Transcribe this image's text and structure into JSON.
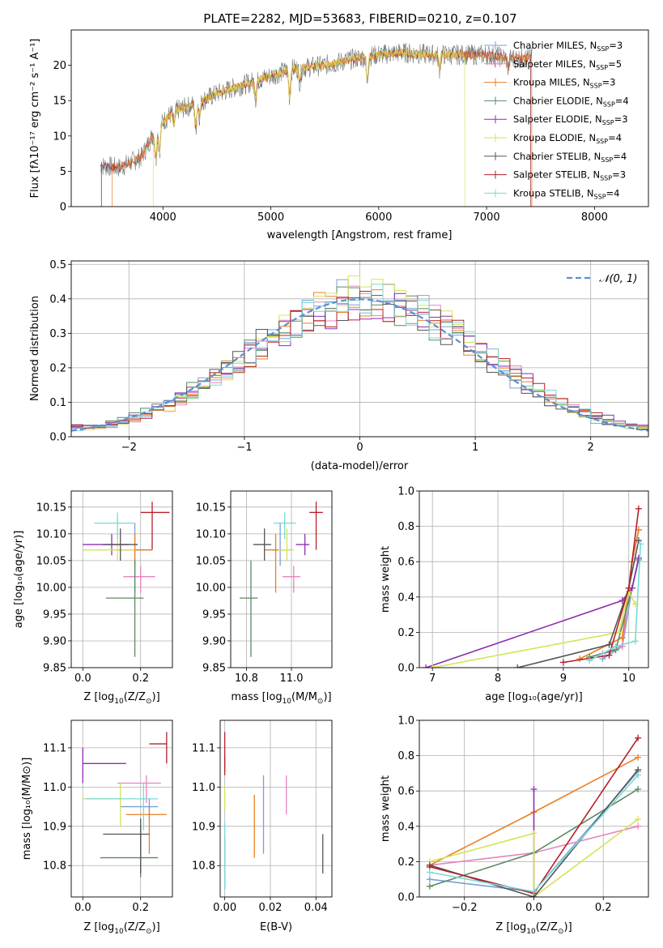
{
  "figure_title": "PLATE=2282, MJD=53683, FIBERID=0210, z=0.107",
  "colors": {
    "chabrier_miles": "#7b9fd6",
    "salpeter_miles": "#e783c0",
    "kroupa_miles": "#e88023",
    "chabrier_elodie": "#5a8a62",
    "salpeter_elodie": "#8e2faf",
    "kroupa_elodie": "#d6e356",
    "chabrier_stelib": "#555555",
    "salpeter_stelib": "#b5202a",
    "kroupa_stelib": "#78d9d6",
    "normal": "#5a8fd6"
  },
  "chart_data": [
    {
      "id": "spectrum",
      "type": "line",
      "xlabel": "wavelength [Angstrom, rest frame]",
      "ylabel": "Flux [fλ10⁻¹⁷ erg cm⁻² s⁻¹ A⁻¹]",
      "xlim": [
        3150,
        8500
      ],
      "ylim": [
        0,
        25
      ],
      "xticks": [
        "4000",
        "5000",
        "6000",
        "7000",
        "8000"
      ],
      "yticks": [
        "0",
        "5",
        "10",
        "15",
        "20"
      ],
      "legend_position": "right",
      "legend": [
        {
          "label": "Chabrier MILES, N",
          "sub": "SSP",
          "tail": "=3"
        },
        {
          "label": "Salpeter MILES, N",
          "sub": "SSP",
          "tail": "=5"
        },
        {
          "label": "Kroupa MILES, N",
          "sub": "SSP",
          "tail": "=3"
        },
        {
          "label": "Chabrier ELODIE, N",
          "sub": "SSP",
          "tail": "=4"
        },
        {
          "label": "Salpeter ELODIE, N",
          "sub": "SSP",
          "tail": "=3"
        },
        {
          "label": "Kroupa ELODIE, N",
          "sub": "SSP",
          "tail": "=4"
        },
        {
          "label": "Chabrier STELIB, N",
          "sub": "SSP",
          "tail": "=4"
        },
        {
          "label": "Salpeter STELIB, N",
          "sub": "SSP",
          "tail": "=3"
        },
        {
          "label": "Kroupa STELIB, N",
          "sub": "SSP",
          "tail": "=4"
        }
      ],
      "continuum": {
        "x": [
          3420,
          3600,
          3800,
          3900,
          4000,
          4100,
          4300,
          4500,
          4800,
          5000,
          5200,
          5500,
          5800,
          6000,
          6200,
          6500,
          6800,
          7000,
          7200,
          7400
        ],
        "y": [
          5.8,
          5.5,
          7.0,
          10.0,
          12.0,
          13.5,
          14.5,
          16.0,
          17.5,
          18.5,
          19.5,
          20.0,
          21.0,
          21.5,
          21.8,
          21.5,
          21.5,
          21.5,
          21.0,
          21.0
        ]
      },
      "model_cutoffs": [
        {
          "series": "kroupa_miles",
          "xmin": 3530,
          "xmax": 7420
        },
        {
          "series": "kroupa_elodie",
          "xmin": 3910,
          "xmax": 6800
        }
      ]
    },
    {
      "id": "residuals",
      "type": "histogram",
      "xlabel": "(data-model)/error",
      "ylabel": "Normed distribution",
      "xlim": [
        -2.5,
        2.5
      ],
      "ylim": [
        0,
        0.51
      ],
      "xticks": [
        "−2",
        "−1",
        "0",
        "1",
        "2"
      ],
      "yticks": [
        "0.0",
        "0.1",
        "0.2",
        "0.3",
        "0.4",
        "0.5"
      ],
      "grid": true,
      "legend_position": "top-right",
      "legend": "𝒩(0, 1)",
      "bin_width": 0.1
    },
    {
      "id": "age-vs-z",
      "type": "scatter",
      "xlabel_main": "Z [log",
      "xlabel_sub": "10",
      "xlabel_tail": "(Z/Z",
      "xlabel_sun_sub": "⊙",
      "xlabel_end": ")]",
      "ylabel": "age  [log₁₀(age/yr)]",
      "xlim": [
        -0.04,
        0.31
      ],
      "ylim": [
        9.85,
        10.18
      ],
      "xticks": [
        "0.0",
        "0.2"
      ],
      "yticks": [
        "9.85",
        "9.90",
        "9.95",
        "10.00",
        "10.05",
        "10.10",
        "10.15"
      ],
      "grid": true,
      "points": [
        {
          "series": "chabrier_miles",
          "x": 0.18,
          "xerr": [
            0.07,
            0.06
          ],
          "y": 10.07,
          "yerr": [
            0.03,
            0.05
          ]
        },
        {
          "series": "salpeter_miles",
          "x": 0.2,
          "xerr": [
            0.06,
            0.05
          ],
          "y": 10.02,
          "yerr": [
            0.03,
            0.02
          ]
        },
        {
          "series": "kroupa_miles",
          "x": 0.18,
          "xerr": [
            0.05,
            0.06
          ],
          "y": 10.07,
          "yerr": [
            0.08,
            0.03
          ]
        },
        {
          "series": "chabrier_elodie",
          "x": 0.18,
          "xerr": [
            0.1,
            0.03
          ],
          "y": 9.98,
          "yerr": [
            0.11,
            0.07
          ]
        },
        {
          "series": "salpeter_elodie",
          "x": 0.1,
          "xerr": [
            0.1,
            0.06
          ],
          "y": 10.08,
          "yerr": [
            0.02,
            0.02
          ]
        },
        {
          "series": "kroupa_elodie",
          "x": 0.12,
          "xerr": [
            0.12,
            0.06
          ],
          "y": 10.07,
          "yerr": [
            0.02,
            0.04
          ]
        },
        {
          "series": "chabrier_stelib",
          "x": 0.13,
          "xerr": [
            0.06,
            0.06
          ],
          "y": 10.08,
          "yerr": [
            0.03,
            0.03
          ]
        },
        {
          "series": "salpeter_stelib",
          "x": 0.24,
          "xerr": [
            0.04,
            0.06
          ],
          "y": 10.14,
          "yerr": [
            0.07,
            0.02
          ]
        },
        {
          "series": "kroupa_stelib",
          "x": 0.12,
          "xerr": [
            0.08,
            0.06
          ],
          "y": 10.12,
          "yerr": [
            0.03,
            0.02
          ]
        }
      ]
    },
    {
      "id": "age-vs-mass",
      "type": "scatter",
      "xlabel_main": "mass [log",
      "xlabel_sub": "10",
      "xlabel_tail": "(M/M",
      "xlabel_sun_sub": "⊙",
      "xlabel_end": ")]",
      "xlim": [
        10.73,
        11.18
      ],
      "ylim": [
        9.85,
        10.18
      ],
      "xticks": [
        "10.8",
        "11.0"
      ],
      "yticks": [
        "9.85",
        "9.90",
        "9.95",
        "10.00",
        "10.05",
        "10.10",
        "10.15"
      ],
      "grid": true,
      "points": [
        {
          "series": "chabrier_miles",
          "x": 10.95,
          "xerr": [
            0.04,
            0.05
          ],
          "y": 10.07,
          "yerr": [
            0.03,
            0.05
          ]
        },
        {
          "series": "salpeter_miles",
          "x": 11.01,
          "xerr": [
            0.05,
            0.03
          ],
          "y": 10.02,
          "yerr": [
            0.03,
            0.02
          ]
        },
        {
          "series": "kroupa_miles",
          "x": 10.93,
          "xerr": [
            0.05,
            0.05
          ],
          "y": 10.07,
          "yerr": [
            0.08,
            0.03
          ]
        },
        {
          "series": "chabrier_elodie",
          "x": 10.82,
          "xerr": [
            0.05,
            0.03
          ],
          "y": 9.98,
          "yerr": [
            0.11,
            0.07
          ]
        },
        {
          "series": "salpeter_elodie",
          "x": 11.06,
          "xerr": [
            0.04,
            0.02
          ],
          "y": 10.08,
          "yerr": [
            0.02,
            0.02
          ]
        },
        {
          "series": "kroupa_elodie",
          "x": 10.98,
          "xerr": [
            0.04,
            0.03
          ],
          "y": 10.07,
          "yerr": [
            0.02,
            0.04
          ]
        },
        {
          "series": "chabrier_stelib",
          "x": 10.88,
          "xerr": [
            0.05,
            0.03
          ],
          "y": 10.08,
          "yerr": [
            0.03,
            0.03
          ]
        },
        {
          "series": "salpeter_stelib",
          "x": 11.11,
          "xerr": [
            0.03,
            0.03
          ],
          "y": 10.14,
          "yerr": [
            0.07,
            0.02
          ]
        },
        {
          "series": "kroupa_stelib",
          "x": 10.97,
          "xerr": [
            0.05,
            0.05
          ],
          "y": 10.12,
          "yerr": [
            0.03,
            0.02
          ]
        }
      ]
    },
    {
      "id": "mass-weight-vs-age",
      "type": "line",
      "xlabel": "age  [log₁₀(age/yr)]",
      "ylabel": "mass weight",
      "xlim": [
        6.8,
        10.3
      ],
      "ylim": [
        0,
        1
      ],
      "xticks": [
        "7",
        "8",
        "9",
        "10"
      ],
      "yticks": [
        "0.0",
        "0.2",
        "0.4",
        "0.6",
        "0.8",
        "1.0"
      ],
      "grid": true,
      "series": [
        {
          "name": "chabrier_miles",
          "x": [
            9.6,
            9.9,
            10.05,
            10.15
          ],
          "y": [
            0.05,
            0.12,
            0.45,
            0.62
          ]
        },
        {
          "name": "salpeter_miles",
          "x": [
            9.6,
            9.9,
            10.05,
            10.15
          ],
          "y": [
            0.08,
            0.12,
            0.6,
            0.78
          ]
        },
        {
          "name": "kroupa_miles",
          "x": [
            9.25,
            9.9,
            10.05,
            10.15
          ],
          "y": [
            0.05,
            0.17,
            0.6,
            0.78
          ]
        },
        {
          "name": "chabrier_elodie",
          "x": [
            9.4,
            9.8,
            10.05,
            10.15
          ],
          "y": [
            0.06,
            0.1,
            0.45,
            0.61
          ]
        },
        {
          "name": "salpeter_elodie",
          "x": [
            6.9,
            9.9,
            10.05,
            10.15
          ],
          "y": [
            0.0,
            0.38,
            0.45,
            0.62
          ]
        },
        {
          "name": "kroupa_elodie",
          "x": [
            7.0,
            9.85,
            10.0,
            10.1
          ],
          "y": [
            0.0,
            0.2,
            0.43,
            0.36
          ]
        },
        {
          "name": "chabrier_stelib",
          "x": [
            8.3,
            9.7,
            10.0,
            10.15
          ],
          "y": [
            0.0,
            0.13,
            0.45,
            0.72
          ]
        },
        {
          "name": "salpeter_stelib",
          "x": [
            9.0,
            9.7,
            10.0,
            10.15
          ],
          "y": [
            0.03,
            0.07,
            0.45,
            0.9
          ]
        },
        {
          "name": "kroupa_stelib",
          "x": [
            9.4,
            9.8,
            10.1,
            10.18
          ],
          "y": [
            0.04,
            0.12,
            0.15,
            0.7
          ]
        }
      ]
    },
    {
      "id": "mass-vs-z",
      "type": "scatter",
      "xlabel_main": "Z [log",
      "xlabel_sub": "10",
      "xlabel_tail": "(Z/Z",
      "xlabel_sun_sub": "⊙",
      "xlabel_end": ")]",
      "ylabel": "mass [log₁₀(M/M⊙)]",
      "xlim": [
        -0.04,
        0.31
      ],
      "ylim": [
        10.72,
        11.17
      ],
      "xticks": [
        "0.0",
        "0.2"
      ],
      "yticks": [
        "10.8",
        "10.9",
        "11.0",
        "11.1"
      ],
      "grid": true,
      "points": [
        {
          "series": "chabrier_miles",
          "x": 0.23,
          "xerr": [
            0.1,
            0.03
          ],
          "y": 10.95,
          "yerr": [
            0.03,
            0.02
          ]
        },
        {
          "series": "salpeter_miles",
          "x": 0.22,
          "xerr": [
            0.1,
            0.05
          ],
          "y": 11.01,
          "yerr": [
            0.05,
            0.02
          ]
        },
        {
          "series": "kroupa_miles",
          "x": 0.23,
          "xerr": [
            0.08,
            0.06
          ],
          "y": 10.93,
          "yerr": [
            0.1,
            0.02
          ]
        },
        {
          "series": "chabrier_elodie",
          "x": 0.2,
          "xerr": [
            0.14,
            0.06
          ],
          "y": 10.82,
          "yerr": [
            0.05,
            0.08
          ]
        },
        {
          "series": "salpeter_elodie",
          "x": 0.0,
          "xerr": [
            0.0,
            0.15
          ],
          "y": 11.06,
          "yerr": [
            0.05,
            0.04
          ]
        },
        {
          "series": "kroupa_elodie",
          "x": 0.13,
          "xerr": [
            0.13,
            0.0
          ],
          "y": 10.97,
          "yerr": [
            0.07,
            0.04
          ]
        },
        {
          "series": "chabrier_stelib",
          "x": 0.2,
          "xerr": [
            0.13,
            0.03
          ],
          "y": 10.88,
          "yerr": [
            0.1,
            0.04
          ]
        },
        {
          "series": "salpeter_stelib",
          "x": 0.29,
          "xerr": [
            0.06,
            0.0
          ],
          "y": 11.11,
          "yerr": [
            0.05,
            0.03
          ]
        },
        {
          "series": "kroupa_stelib",
          "x": 0.21,
          "xerr": [
            0.2,
            0.05
          ],
          "y": 10.97,
          "yerr": [
            0.08,
            0.04
          ]
        }
      ]
    },
    {
      "id": "mass-vs-ebv",
      "type": "scatter",
      "xlabel": "E(B-V)",
      "xlim": [
        -0.002,
        0.047
      ],
      "ylim": [
        10.72,
        11.17
      ],
      "xticks": [
        "0.00",
        "0.02",
        "0.04"
      ],
      "yticks": [
        "10.8",
        "10.9",
        "11.0",
        "11.1"
      ],
      "grid": true,
      "points": [
        {
          "series": "chabrier_miles",
          "x": 0.017,
          "y": 10.93,
          "yerr": [
            0.1,
            0.1
          ]
        },
        {
          "series": "salpeter_miles",
          "x": 0.027,
          "y": 11.0,
          "yerr": [
            0.07,
            0.03
          ]
        },
        {
          "series": "kroupa_miles",
          "x": 0.013,
          "y": 10.9,
          "yerr": [
            0.08,
            0.08
          ]
        },
        {
          "series": "chabrier_elodie",
          "x": 0.0,
          "y": 10.82,
          "yerr": [
            0.08,
            0.05
          ]
        },
        {
          "series": "salpeter_elodie",
          "x": 0.0,
          "y": 11.06,
          "yerr": [
            0.02,
            0.02
          ]
        },
        {
          "series": "kroupa_elodie",
          "x": 0.0,
          "y": 10.97,
          "yerr": [
            0.03,
            0.03
          ]
        },
        {
          "series": "chabrier_stelib",
          "x": 0.043,
          "y": 10.83,
          "yerr": [
            0.05,
            0.05
          ]
        },
        {
          "series": "salpeter_stelib",
          "x": 0.0,
          "y": 11.08,
          "yerr": [
            0.05,
            0.06
          ]
        },
        {
          "series": "kroupa_stelib",
          "x": 0.0,
          "y": 10.86,
          "yerr": [
            0.12,
            0.05
          ]
        }
      ]
    },
    {
      "id": "mass-weight-vs-z",
      "type": "line",
      "xlabel_main": "Z [log",
      "xlabel_sub": "10",
      "xlabel_tail": "(Z/Z",
      "xlabel_sun_sub": "⊙",
      "xlabel_end": ")]",
      "ylabel": "mass weight",
      "xlim": [
        -0.33,
        0.33
      ],
      "ylim": [
        0,
        1
      ],
      "xticks": [
        "−0.2",
        "0.0",
        "0.2"
      ],
      "yticks": [
        "0.0",
        "0.2",
        "0.4",
        "0.6",
        "0.8",
        "1.0"
      ],
      "grid": true,
      "series": [
        {
          "name": "chabrier_miles",
          "x": [
            -0.3,
            0.0,
            0.3
          ],
          "y": [
            0.1,
            0.03,
            0.71
          ]
        },
        {
          "name": "salpeter_miles",
          "x": [
            -0.3,
            0.0,
            0.3
          ],
          "y": [
            0.18,
            0.25,
            0.4
          ]
        },
        {
          "name": "kroupa_miles",
          "x": [
            -0.3,
            0.0,
            0.3
          ],
          "y": [
            0.18,
            0.48,
            0.79
          ]
        },
        {
          "name": "chabrier_elodie",
          "x": [
            -0.3,
            0.0,
            0.3
          ],
          "y": [
            0.06,
            0.25,
            0.61
          ]
        },
        {
          "name": "salpeter_elodie",
          "x": [
            0.0,
            0.0
          ],
          "y": [
            0.0,
            0.61
          ]
        },
        {
          "name": "kroupa_elodie",
          "x": [
            -0.3,
            0.0,
            0.0,
            0.3
          ],
          "y": [
            0.2,
            0.36,
            0.0,
            0.44
          ]
        },
        {
          "name": "chabrier_stelib",
          "x": [
            -0.3,
            0.0,
            0.3
          ],
          "y": [
            0.18,
            0.0,
            0.72
          ]
        },
        {
          "name": "salpeter_stelib",
          "x": [
            -0.3,
            0.0,
            0.3
          ],
          "y": [
            0.17,
            0.02,
            0.9
          ]
        },
        {
          "name": "kroupa_stelib",
          "x": [
            -0.3,
            0.0,
            0.3
          ],
          "y": [
            0.14,
            0.03,
            0.69
          ]
        }
      ]
    }
  ]
}
